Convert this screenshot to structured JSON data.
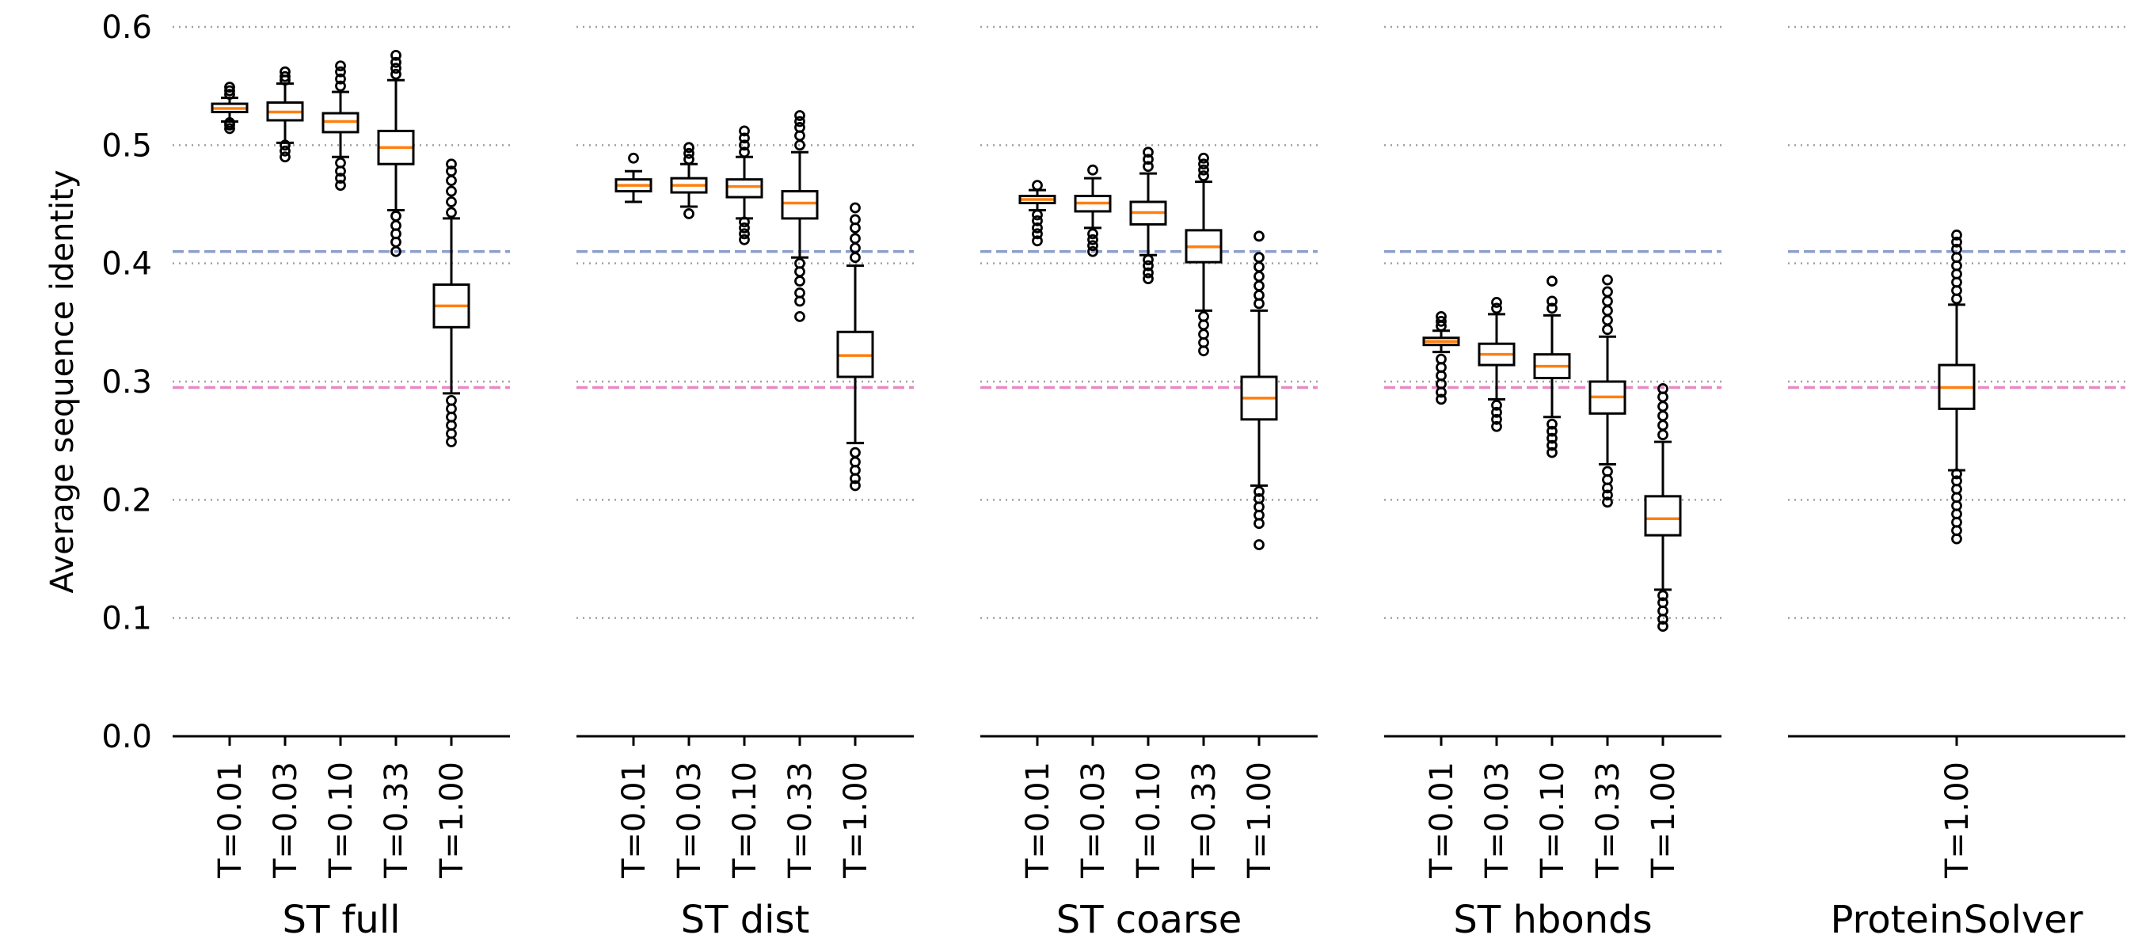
{
  "chart_data": {
    "type": "box",
    "ylabel": "Average sequence identity",
    "ylim": [
      0,
      0.6
    ],
    "yticks": [
      "0.0",
      "0.1",
      "0.2",
      "0.3",
      "0.4",
      "0.5",
      "0.6"
    ],
    "grid": "horizontal dotted",
    "reference_lines": [
      {
        "value": 0.41,
        "color": "#8da0cb",
        "style": "dashed"
      },
      {
        "value": 0.295,
        "color": "#e78ac3",
        "style": "dashed"
      }
    ],
    "colors": {
      "median": "#ff7f0e",
      "box": "#000000"
    },
    "groups": [
      {
        "name": "ST full",
        "boxes": [
          {
            "label": "T=0.01",
            "whislo": 0.52,
            "q1": 0.528,
            "median": 0.531,
            "q3": 0.535,
            "whishi": 0.54,
            "fliers_low": [
              0.514,
              0.517,
              0.519
            ],
            "fliers_high": [
              0.543,
              0.546,
              0.549
            ]
          },
          {
            "label": "T=0.03",
            "whislo": 0.502,
            "q1": 0.521,
            "median": 0.528,
            "q3": 0.536,
            "whishi": 0.552,
            "fliers_low": [
              0.49,
              0.495,
              0.5
            ],
            "fliers_high": [
              0.555,
              0.558,
              0.562
            ]
          },
          {
            "label": "T=0.10",
            "whislo": 0.49,
            "q1": 0.511,
            "median": 0.52,
            "q3": 0.527,
            "whishi": 0.545,
            "fliers_low": [
              0.466,
              0.472,
              0.478,
              0.485
            ],
            "fliers_high": [
              0.55,
              0.556,
              0.562,
              0.567
            ]
          },
          {
            "label": "T=0.33",
            "whislo": 0.445,
            "q1": 0.484,
            "median": 0.498,
            "q3": 0.512,
            "whishi": 0.555,
            "fliers_low": [
              0.41,
              0.418,
              0.425,
              0.432,
              0.44
            ],
            "fliers_high": [
              0.56,
              0.565,
              0.57,
              0.576
            ]
          },
          {
            "label": "T=1.00",
            "whislo": 0.29,
            "q1": 0.346,
            "median": 0.364,
            "q3": 0.382,
            "whishi": 0.438,
            "fliers_low": [
              0.249,
              0.256,
              0.263,
              0.27,
              0.277,
              0.284
            ],
            "fliers_high": [
              0.443,
              0.452,
              0.461,
              0.47,
              0.478,
              0.484
            ]
          }
        ]
      },
      {
        "name": "ST dist",
        "boxes": [
          {
            "label": "T=0.01",
            "whislo": 0.452,
            "q1": 0.461,
            "median": 0.466,
            "q3": 0.471,
            "whishi": 0.478,
            "fliers_low": [],
            "fliers_high": [
              0.489
            ]
          },
          {
            "label": "T=0.03",
            "whislo": 0.448,
            "q1": 0.46,
            "median": 0.466,
            "q3": 0.472,
            "whishi": 0.484,
            "fliers_low": [
              0.442
            ],
            "fliers_high": [
              0.488,
              0.493,
              0.498
            ]
          },
          {
            "label": "T=0.10",
            "whislo": 0.438,
            "q1": 0.456,
            "median": 0.465,
            "q3": 0.471,
            "whishi": 0.49,
            "fliers_low": [
              0.42,
              0.425,
              0.43,
              0.435
            ],
            "fliers_high": [
              0.494,
              0.5,
              0.506,
              0.512
            ]
          },
          {
            "label": "T=0.33",
            "whislo": 0.405,
            "q1": 0.438,
            "median": 0.451,
            "q3": 0.461,
            "whishi": 0.494,
            "fliers_low": [
              0.355,
              0.368,
              0.375,
              0.385,
              0.393,
              0.4
            ],
            "fliers_high": [
              0.5,
              0.508,
              0.515,
              0.52,
              0.525
            ]
          },
          {
            "label": "T=1.00",
            "whislo": 0.248,
            "q1": 0.304,
            "median": 0.322,
            "q3": 0.342,
            "whishi": 0.398,
            "fliers_low": [
              0.212,
              0.218,
              0.225,
              0.232,
              0.24
            ],
            "fliers_high": [
              0.405,
              0.413,
              0.421,
              0.43,
              0.437,
              0.447
            ]
          }
        ]
      },
      {
        "name": "ST coarse",
        "boxes": [
          {
            "label": "T=0.01",
            "whislo": 0.445,
            "q1": 0.451,
            "median": 0.454,
            "q3": 0.457,
            "whishi": 0.462,
            "fliers_low": [
              0.419,
              0.425,
              0.43,
              0.436,
              0.441
            ],
            "fliers_high": [
              0.466
            ]
          },
          {
            "label": "T=0.03",
            "whislo": 0.43,
            "q1": 0.444,
            "median": 0.451,
            "q3": 0.457,
            "whishi": 0.472,
            "fliers_low": [
              0.41,
              0.415,
              0.42,
              0.425
            ],
            "fliers_high": [
              0.479
            ]
          },
          {
            "label": "T=0.10",
            "whislo": 0.407,
            "q1": 0.433,
            "median": 0.443,
            "q3": 0.452,
            "whishi": 0.476,
            "fliers_low": [
              0.387,
              0.392,
              0.398,
              0.403
            ],
            "fliers_high": [
              0.482,
              0.488,
              0.494
            ]
          },
          {
            "label": "T=0.33",
            "whislo": 0.36,
            "q1": 0.401,
            "median": 0.414,
            "q3": 0.428,
            "whishi": 0.469,
            "fliers_low": [
              0.326,
              0.333,
              0.34,
              0.348,
              0.355
            ],
            "fliers_high": [
              0.474,
              0.479,
              0.484,
              0.489
            ]
          },
          {
            "label": "T=1.00",
            "whislo": 0.212,
            "q1": 0.268,
            "median": 0.286,
            "q3": 0.304,
            "whishi": 0.36,
            "fliers_low": [
              0.162,
              0.18,
              0.187,
              0.194,
              0.201,
              0.207
            ],
            "fliers_high": [
              0.366,
              0.373,
              0.381,
              0.389,
              0.397,
              0.405,
              0.423
            ]
          }
        ]
      },
      {
        "name": "ST hbonds",
        "boxes": [
          {
            "label": "T=0.01",
            "whislo": 0.325,
            "q1": 0.331,
            "median": 0.334,
            "q3": 0.337,
            "whishi": 0.343,
            "fliers_low": [
              0.285,
              0.291,
              0.298,
              0.305,
              0.312,
              0.319
            ],
            "fliers_high": [
              0.347,
              0.351,
              0.355
            ]
          },
          {
            "label": "T=0.03",
            "whislo": 0.285,
            "q1": 0.314,
            "median": 0.323,
            "q3": 0.332,
            "whishi": 0.357,
            "fliers_low": [
              0.262,
              0.268,
              0.274,
              0.28
            ],
            "fliers_high": [
              0.362,
              0.367
            ]
          },
          {
            "label": "T=0.10",
            "whislo": 0.27,
            "q1": 0.303,
            "median": 0.313,
            "q3": 0.323,
            "whishi": 0.356,
            "fliers_low": [
              0.24,
              0.246,
              0.252,
              0.258,
              0.264
            ],
            "fliers_high": [
              0.362,
              0.368,
              0.385
            ]
          },
          {
            "label": "T=0.33",
            "whislo": 0.23,
            "q1": 0.273,
            "median": 0.287,
            "q3": 0.3,
            "whishi": 0.338,
            "fliers_low": [
              0.198,
              0.204,
              0.21,
              0.217,
              0.224
            ],
            "fliers_high": [
              0.344,
              0.352,
              0.36,
              0.368,
              0.376,
              0.386
            ]
          },
          {
            "label": "T=1.00",
            "whislo": 0.124,
            "q1": 0.17,
            "median": 0.184,
            "q3": 0.203,
            "whishi": 0.249,
            "fliers_low": [
              0.093,
              0.099,
              0.106,
              0.113,
              0.119
            ],
            "fliers_high": [
              0.255,
              0.263,
              0.271,
              0.279,
              0.287,
              0.294
            ]
          }
        ]
      },
      {
        "name": "ProteinSolver",
        "boxes": [
          {
            "label": "T=1.00",
            "whislo": 0.225,
            "q1": 0.277,
            "median": 0.295,
            "q3": 0.314,
            "whishi": 0.365,
            "fliers_low": [
              0.167,
              0.174,
              0.181,
              0.188,
              0.195,
              0.202,
              0.209,
              0.216,
              0.222
            ],
            "fliers_high": [
              0.37,
              0.377,
              0.384,
              0.391,
              0.398,
              0.405,
              0.412,
              0.418,
              0.424
            ]
          }
        ]
      }
    ]
  }
}
